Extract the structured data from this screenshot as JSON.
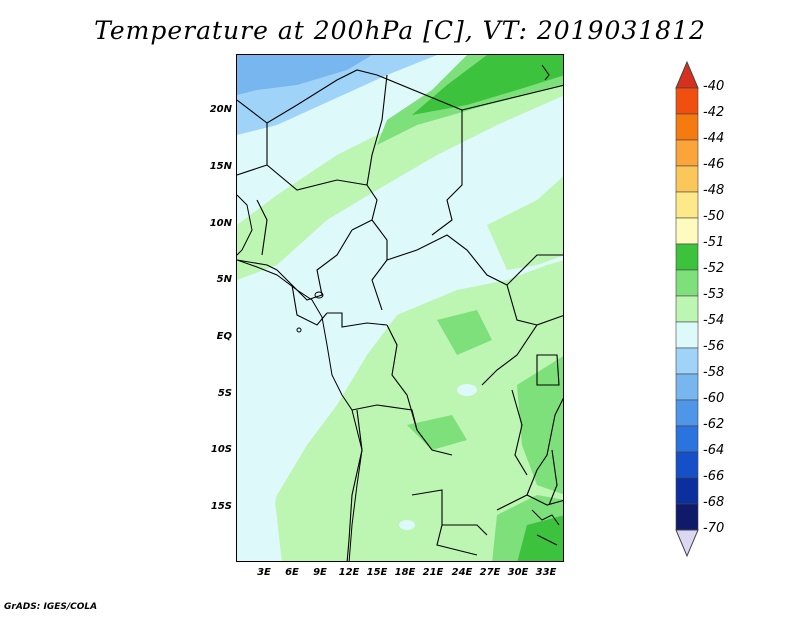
{
  "title": "Temperature at 200hPa [C], VT: 2019031812",
  "footer": "GrADS: IGES/COLA",
  "lat_labels": [
    "20N",
    "15N",
    "10N",
    "5N",
    "EQ",
    "5S",
    "10S",
    "15S"
  ],
  "lon_labels": [
    "3E",
    "6E",
    "9E",
    "12E",
    "15E",
    "18E",
    "21E",
    "24E",
    "27E",
    "30E",
    "33E"
  ],
  "colorbar": {
    "labels": [
      "-40",
      "-42",
      "-44",
      "-46",
      "-48",
      "-50",
      "-51",
      "-52",
      "-53",
      "-54",
      "-56",
      "-58",
      "-60",
      "-62",
      "-64",
      "-66",
      "-68",
      "-70"
    ],
    "colors": [
      "#d7301f",
      "#f04f10",
      "#f57a10",
      "#fba43a",
      "#fbc75a",
      "#fde98a",
      "#fdfbbe",
      "#3cc23c",
      "#7de07a",
      "#bdf5b2",
      "#def9fa",
      "#9fd3f8",
      "#78b6f0",
      "#5096e8",
      "#2b73de",
      "#1650c8",
      "#0c2fa0",
      "#101a6a",
      "#dcd8f4"
    ]
  },
  "map": {
    "extent": {
      "lon_min": 0,
      "lon_max": 35,
      "lat_min": -20,
      "lat_max": 25
    },
    "colors": {
      "cold_blue": "#78b6f0",
      "light_blue": "#9fd3f8",
      "pale_cyan": "#def9fa",
      "pale_green": "#bdf5b2",
      "mid_green": "#7de07a",
      "dark_green": "#3cc23c"
    }
  }
}
